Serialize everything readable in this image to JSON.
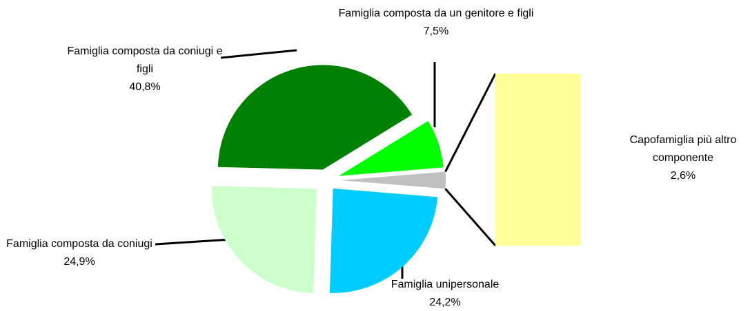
{
  "chart_data": {
    "type": "pie",
    "categories": [
      "Capofamiglia più altro componente",
      "Famiglia composta da un genitore e figli",
      "Famiglia composta da coniugi e figli",
      "Famiglia composta da coniugi",
      "Famiglia unipersonale"
    ],
    "values": [
      2.6,
      7.5,
      40.8,
      24.9,
      24.2
    ],
    "value_labels": [
      "2,6%",
      "7,5%",
      "40,8%",
      "24,9%",
      "24,2%"
    ],
    "colors": [
      "#c0c0c0",
      "#00ff00",
      "#008000",
      "#ccffcc",
      "#00ccff"
    ],
    "bar_color": "#ffff99"
  }
}
